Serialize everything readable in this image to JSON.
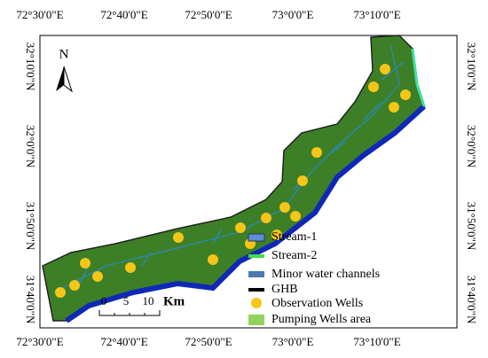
{
  "map": {
    "top_labels": [
      "72°30'0\"E",
      "72°40'0\"E",
      "72°50'0\"E",
      "73°0'0\"E",
      "73°10'0\"E"
    ],
    "bottom_labels": [
      "72°30'0\"E",
      "72°40'0\"E",
      "72°50'0\"E",
      "73°0'0\"E",
      "73°10'0\"E"
    ],
    "left_labels": [
      "32°10'0\"N",
      "32°0'0\"N",
      "31°50'0\"N",
      "31°40'0\"N"
    ],
    "right_labels": [
      "32°10'0\"N",
      "32°0'0\"N",
      "31°50'0\"N",
      "31°40'0\"N"
    ],
    "north": "N",
    "scale": {
      "ticks": [
        "0",
        "5",
        "10"
      ],
      "unit": "Km"
    },
    "legend": [
      "Stream-1",
      "Stream-2",
      "Minor water channels",
      "GHB",
      "Observation Wells",
      "Pumping Wells area"
    ]
  }
}
